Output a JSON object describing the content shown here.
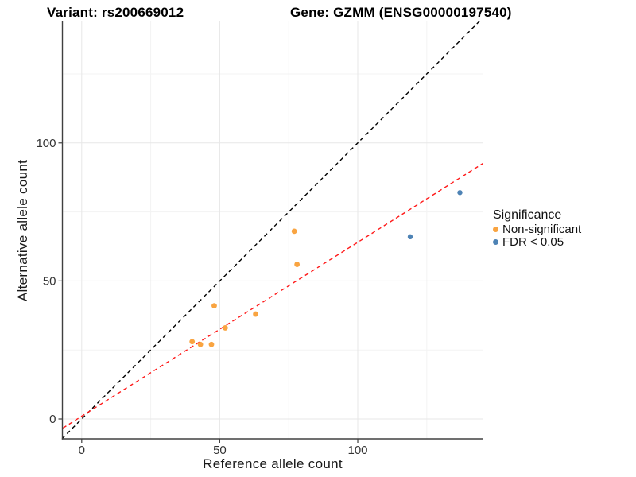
{
  "chart_data": {
    "type": "scatter",
    "titles": {
      "variant": "Variant: rs200669012",
      "gene": "Gene: GZMM (ENSG00000197540)"
    },
    "xlabel": "Reference allele count",
    "ylabel": "Alternative allele count",
    "xlim": [
      -7,
      145.5
    ],
    "ylim": [
      -7.2,
      144
    ],
    "xticks": [
      0,
      50,
      100
    ],
    "yticks": [
      0,
      50,
      100
    ],
    "xminor_ticks": [
      25,
      75,
      125
    ],
    "yminor_ticks": [
      25,
      75,
      125
    ],
    "grid": "major and minor, light gray on white panel",
    "legend": {
      "title": "Significance",
      "position": "right",
      "items": [
        {
          "label": "Non-significant",
          "color": "#F9A441"
        },
        {
          "label": "FDR < 0.05",
          "color": "#4E83B5"
        }
      ]
    },
    "series": [
      {
        "name": "Non-significant",
        "color": "#F9A441",
        "points": [
          [
            40,
            28
          ],
          [
            43,
            27
          ],
          [
            47,
            27
          ],
          [
            48,
            41
          ],
          [
            52,
            33
          ],
          [
            63,
            38
          ],
          [
            77,
            68
          ],
          [
            78,
            56
          ]
        ]
      },
      {
        "name": "FDR < 0.05",
        "color": "#4E83B5",
        "points": [
          [
            119,
            66
          ],
          [
            137,
            82
          ]
        ]
      }
    ],
    "reference_lines": [
      {
        "name": "identity",
        "color": "#000000",
        "style": "dashed",
        "slope": 1,
        "intercept": 0
      },
      {
        "name": "fit",
        "color": "#FF1A1A",
        "style": "dashed",
        "slope": 0.63,
        "intercept": 1
      }
    ],
    "colors": {
      "axis": "#404040",
      "tick_text": "#333333",
      "grid_major": "#e7e7e7",
      "grid_minor": "#f3f3f3",
      "background": "#ffffff"
    }
  }
}
